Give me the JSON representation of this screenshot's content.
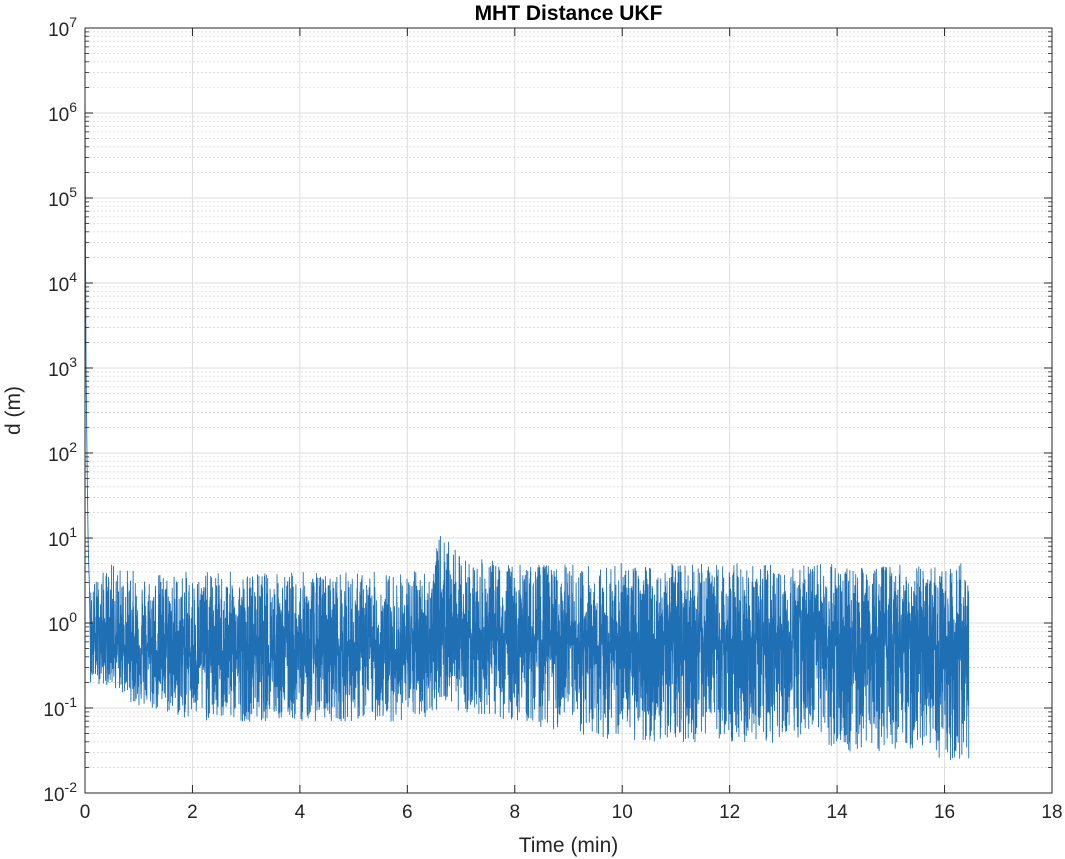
{
  "chart_data": {
    "type": "line",
    "title": "MHT Distance UKF",
    "xlabel": "Time (min)",
    "ylabel": "d (m)",
    "xlim": [
      0,
      18
    ],
    "ylim": [
      0.01,
      10000000
    ],
    "yscale": "log",
    "grid": true,
    "minor_grid": true,
    "x_ticks": [
      0,
      2,
      4,
      6,
      8,
      10,
      12,
      14,
      16,
      18
    ],
    "x_tick_labels": [
      "0",
      "2",
      "4",
      "6",
      "8",
      "10",
      "12",
      "14",
      "16",
      "18"
    ],
    "y_ticks": [
      0.01,
      0.1,
      1,
      10,
      100,
      1000,
      10000,
      100000,
      1000000,
      10000000
    ],
    "y_tick_labels": [
      {
        "base": "10",
        "exp": "-2"
      },
      {
        "base": "10",
        "exp": "-1"
      },
      {
        "base": "10",
        "exp": "0"
      },
      {
        "base": "10",
        "exp": "1"
      },
      {
        "base": "10",
        "exp": "2"
      },
      {
        "base": "10",
        "exp": "3"
      },
      {
        "base": "10",
        "exp": "4"
      },
      {
        "base": "10",
        "exp": "5"
      },
      {
        "base": "10",
        "exp": "6"
      },
      {
        "base": "10",
        "exp": "7"
      }
    ],
    "series": [
      {
        "color": "#1f6fb5",
        "initial_transient": {
          "x": [
            0,
            0.005,
            0.01,
            0.02,
            0.04,
            0.06,
            0.08
          ],
          "y": [
            2000000,
            200000,
            20000,
            1000,
            60,
            8,
            3
          ]
        },
        "envelope": {
          "x": [
            0.1,
            0.5,
            1,
            2,
            3,
            4,
            5,
            6,
            6.5,
            6.6,
            7,
            8,
            9,
            10,
            11,
            12,
            13,
            14,
            15,
            16,
            16.45
          ],
          "upper": [
            3,
            5,
            4,
            4,
            4,
            4,
            4,
            4,
            5,
            12,
            6,
            5,
            5,
            5,
            5,
            5,
            5,
            5,
            5,
            5,
            5
          ],
          "lower": [
            0.2,
            0.18,
            0.1,
            0.07,
            0.07,
            0.07,
            0.07,
            0.07,
            0.08,
            0.12,
            0.09,
            0.07,
            0.05,
            0.04,
            0.04,
            0.04,
            0.035,
            0.03,
            0.03,
            0.025,
            0.02
          ],
          "median": [
            0.6,
            0.6,
            0.5,
            0.45,
            0.45,
            0.45,
            0.45,
            0.45,
            0.5,
            1.0,
            0.7,
            0.6,
            0.55,
            0.55,
            0.55,
            0.55,
            0.55,
            0.55,
            0.55,
            0.55,
            0.55
          ]
        }
      }
    ]
  }
}
